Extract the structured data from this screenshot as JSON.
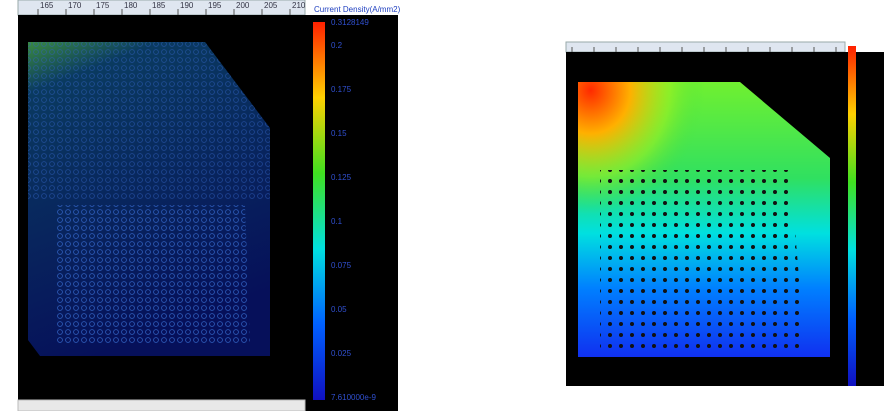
{
  "left_panel": {
    "ruler_ticks": [
      "165",
      "170",
      "175",
      "180",
      "185",
      "190",
      "195",
      "200",
      "205",
      "210"
    ],
    "legend": {
      "title": "Current Density(A/mm2)",
      "labels": [
        "0.3128149",
        "0.2",
        "0.175",
        "0.15",
        "0.125",
        "0.1",
        "0.075",
        "0.05",
        "0.025",
        "7.610000e-9"
      ]
    }
  }
}
